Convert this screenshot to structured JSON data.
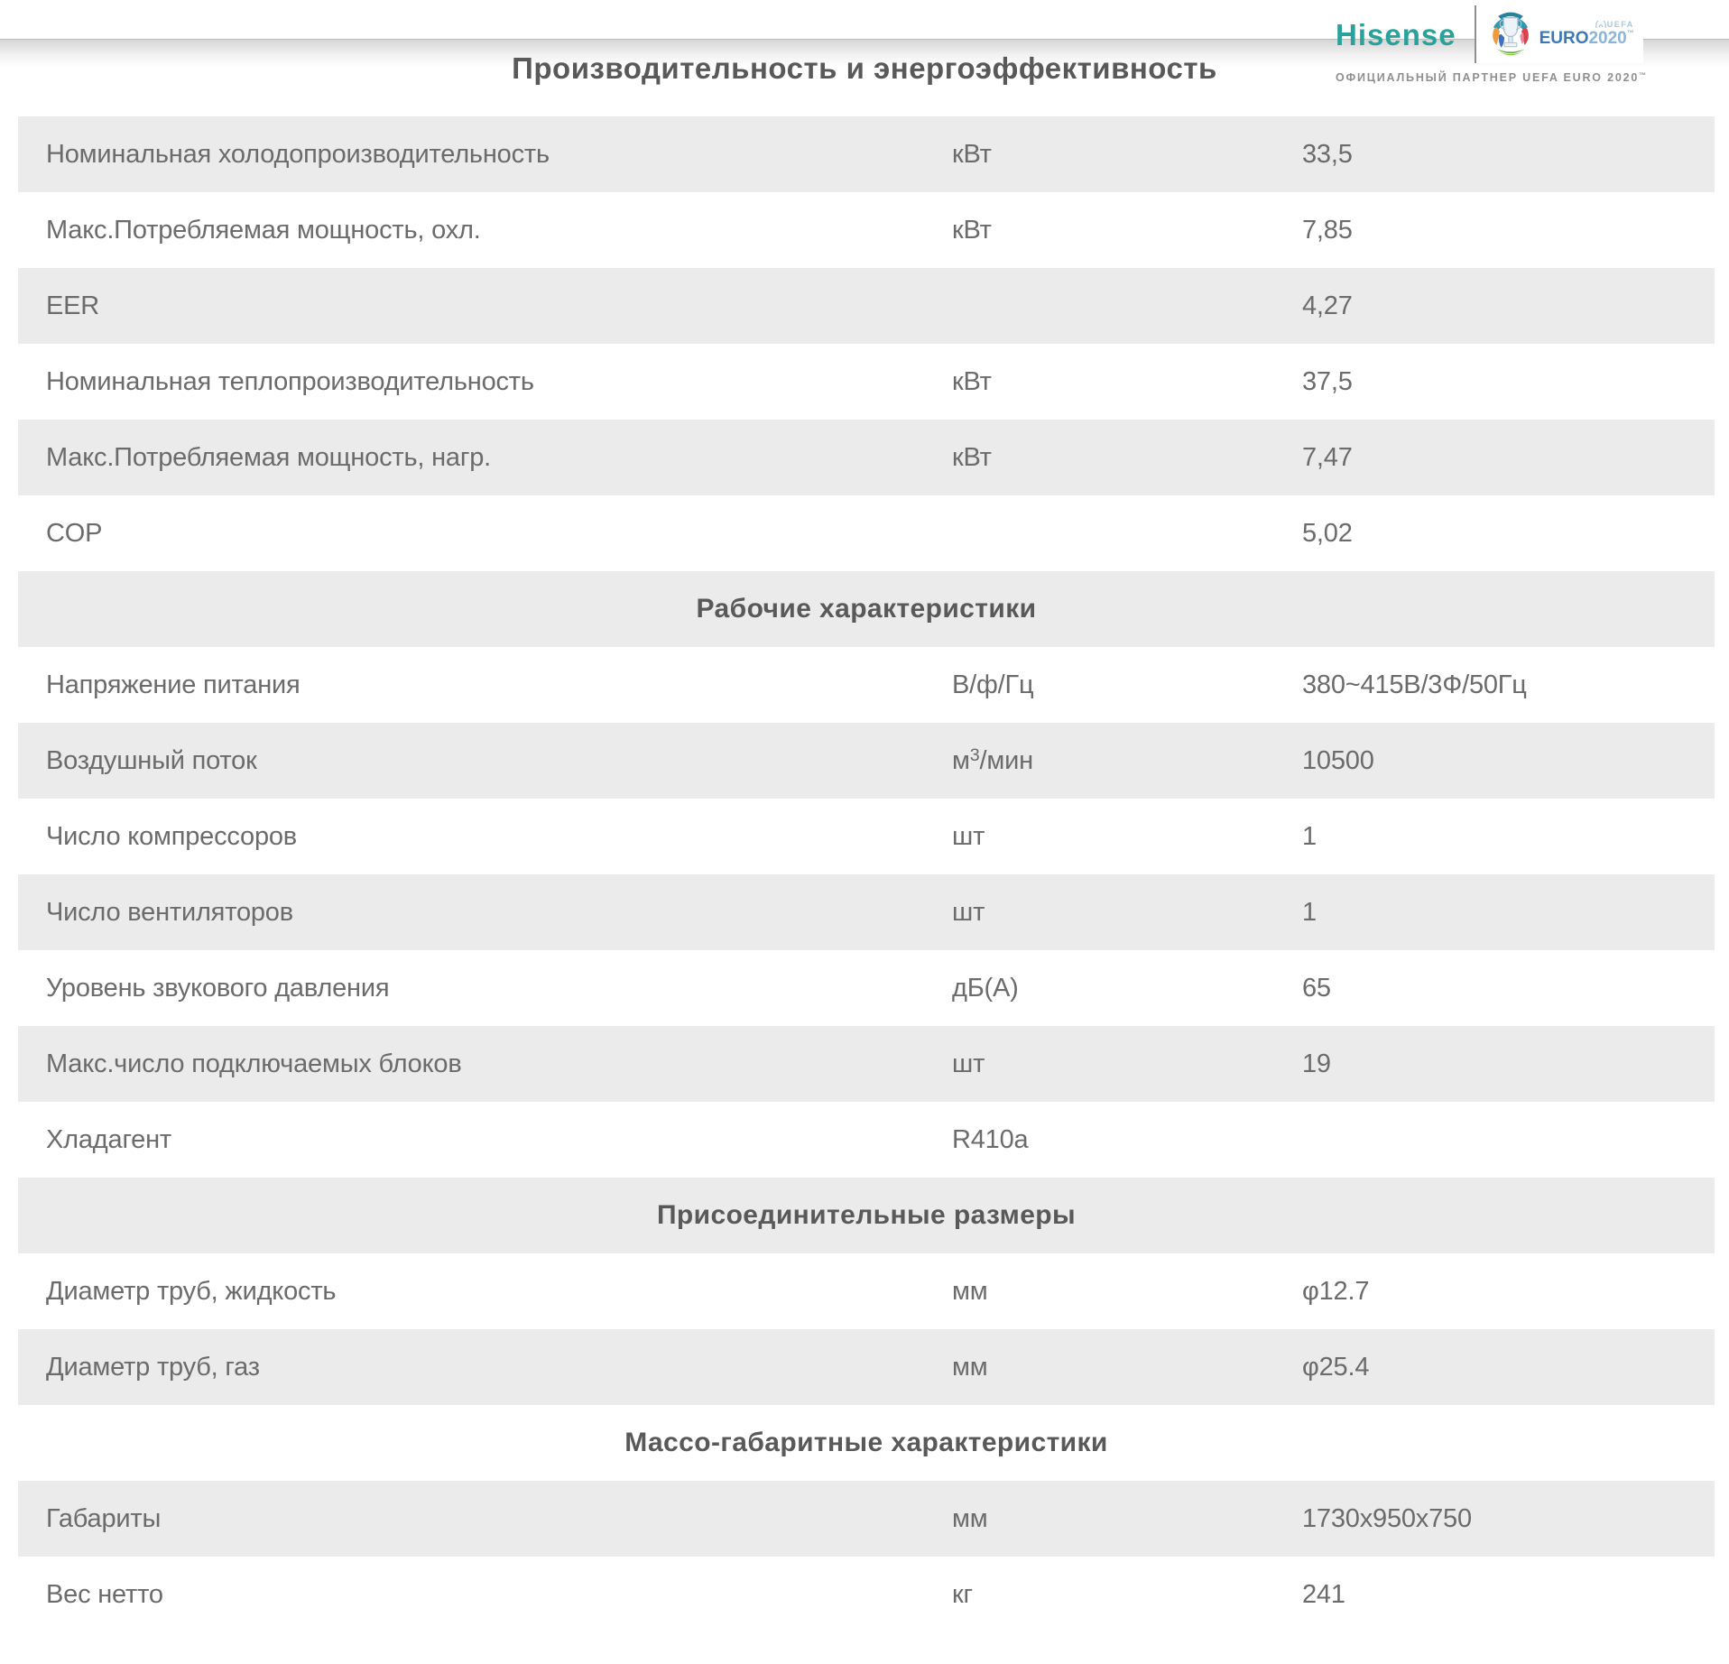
{
  "page": {
    "title": "Производительность и энергоэффективность"
  },
  "header": {
    "brand": "Hisense",
    "euro_logo": {
      "uefa_label": "UEFA",
      "euro_word": "EURO",
      "euro_year": "2020",
      "trademark": "™"
    },
    "partner_line": "ОФИЦИАЛЬНЫЙ ПАРТНЕР UEFA EURO 2020",
    "partner_mark": "™"
  },
  "table": {
    "rows": [
      {
        "type": "data",
        "label": "Номинальная холодопроизводительность",
        "unit": "кВт",
        "value": "33,5"
      },
      {
        "type": "data",
        "label": "Макс.Потребляемая мощность, охл.",
        "unit": "кВт",
        "value": "7,85"
      },
      {
        "type": "data",
        "label": "EER",
        "unit": "",
        "value": "4,27"
      },
      {
        "type": "data",
        "label": "Номинальная теплопроизводительность",
        "unit": "кВт",
        "value": "37,5"
      },
      {
        "type": "data",
        "label": "Макс.Потребляемая мощность, нагр.",
        "unit": "кВт",
        "value": "7,47"
      },
      {
        "type": "data",
        "label": "COP",
        "unit": "",
        "value": "5,02"
      },
      {
        "type": "section",
        "label": "Рабочие характеристики"
      },
      {
        "type": "data",
        "label": "Напряжение питания",
        "unit": "В/ф/Гц",
        "value": "380~415В/3Ф/50Гц"
      },
      {
        "type": "data",
        "label": "Воздушный поток",
        "unit": "м³/мин",
        "value": "10500"
      },
      {
        "type": "data",
        "label": "Число компрессоров",
        "unit": "шт",
        "value": "1"
      },
      {
        "type": "data",
        "label": "Число вентиляторов",
        "unit": "шт",
        "value": "1"
      },
      {
        "type": "data",
        "label": "Уровень звукового давления",
        "unit": "дБ(А)",
        "value": "65"
      },
      {
        "type": "data",
        "label": "Макс.число подключаемых блоков",
        "unit": "шт",
        "value": "19"
      },
      {
        "type": "data",
        "label": "Хладагент",
        "unit": "R410a",
        "value": ""
      },
      {
        "type": "section",
        "label": "Присоединительные размеры"
      },
      {
        "type": "data",
        "label": "Диаметр труб, жидкость",
        "unit": "мм",
        "value": "φ12.7"
      },
      {
        "type": "data",
        "label": "Диаметр труб, газ",
        "unit": "мм",
        "value": "φ25.4"
      },
      {
        "type": "section",
        "label": "Массо-габаритные характеристики"
      },
      {
        "type": "data",
        "label": "Габариты",
        "unit": "мм",
        "value": "1730x950x750"
      },
      {
        "type": "data",
        "label": "Вес нетто",
        "unit": "кг",
        "value": "241"
      }
    ]
  },
  "colors": {
    "stripe": "#ebebeb",
    "text": "#6b6b6b",
    "title": "#595959",
    "brand_teal": "#2aa29c",
    "euro_blue": "#3a79b8",
    "euro_blue_light": "#8ab4d9",
    "partner_gray": "#8f8f8f"
  }
}
